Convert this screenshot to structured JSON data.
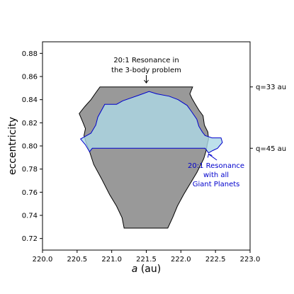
{
  "chart_data": {
    "type": "area",
    "xlabel": "a (au)",
    "xlabel_italic": "a",
    "xlabel_unit": " (au)",
    "ylabel": "eccentricity",
    "xlim": [
      220.0,
      223.0
    ],
    "ylim": [
      0.71,
      0.89
    ],
    "xticks": [
      "220.0",
      "220.5",
      "221.0",
      "221.5",
      "222.0",
      "222.5",
      "223.0"
    ],
    "yticks": [
      "0.72",
      "0.74",
      "0.76",
      "0.78",
      "0.80",
      "0.82",
      "0.84",
      "0.86",
      "0.88"
    ],
    "grid": false,
    "colors": {
      "three_body_fill": "#999999",
      "three_body_edge": "#000000",
      "giant_planets_fill": "#add8e6",
      "giant_planets_edge": "#0000cc",
      "giant_planets_label": "#0000cc"
    },
    "regions": [
      {
        "id": "three_body",
        "label": "20:1 Resonance in the 3-body problem",
        "label_lines": [
          "20:1 Resonance in",
          "the 3-body problem"
        ],
        "polygon": [
          [
            220.83,
            0.851
          ],
          [
            222.17,
            0.851
          ],
          [
            222.13,
            0.845
          ],
          [
            222.16,
            0.841
          ],
          [
            222.21,
            0.836
          ],
          [
            222.26,
            0.831
          ],
          [
            222.32,
            0.826
          ],
          [
            222.34,
            0.818
          ],
          [
            222.39,
            0.812
          ],
          [
            222.4,
            0.806
          ],
          [
            222.38,
            0.801
          ],
          [
            222.37,
            0.797
          ],
          [
            222.33,
            0.789
          ],
          [
            222.23,
            0.777
          ],
          [
            222.13,
            0.767
          ],
          [
            222.04,
            0.758
          ],
          [
            221.95,
            0.748
          ],
          [
            221.88,
            0.738
          ],
          [
            221.81,
            0.729
          ],
          [
            221.18,
            0.729
          ],
          [
            221.15,
            0.738
          ],
          [
            221.07,
            0.748
          ],
          [
            220.97,
            0.758
          ],
          [
            220.85,
            0.772
          ],
          [
            220.74,
            0.784
          ],
          [
            220.67,
            0.797
          ],
          [
            220.63,
            0.803
          ],
          [
            220.6,
            0.809
          ],
          [
            220.62,
            0.815
          ],
          [
            220.58,
            0.821
          ],
          [
            220.53,
            0.828
          ],
          [
            220.61,
            0.834
          ],
          [
            220.7,
            0.84
          ],
          [
            220.77,
            0.846
          ]
        ]
      },
      {
        "id": "giant_planets",
        "label": "20:1 Resonance with all Giant Planets",
        "label_lines": [
          "20:1 Resonance",
          "with all",
          "Giant Planets"
        ],
        "polygon": [
          [
            220.9,
            0.836
          ],
          [
            221.07,
            0.836
          ],
          [
            221.16,
            0.839
          ],
          [
            221.4,
            0.844
          ],
          [
            221.54,
            0.847
          ],
          [
            221.65,
            0.845
          ],
          [
            221.83,
            0.843
          ],
          [
            221.96,
            0.84
          ],
          [
            222.09,
            0.835
          ],
          [
            222.15,
            0.83
          ],
          [
            222.23,
            0.823
          ],
          [
            222.26,
            0.817
          ],
          [
            222.31,
            0.812
          ],
          [
            222.35,
            0.809
          ],
          [
            222.45,
            0.807
          ],
          [
            222.58,
            0.807
          ],
          [
            222.6,
            0.803
          ],
          [
            222.53,
            0.798
          ],
          [
            222.46,
            0.796
          ],
          [
            222.4,
            0.794
          ],
          [
            222.35,
            0.798
          ],
          [
            220.72,
            0.798
          ],
          [
            220.68,
            0.795
          ],
          [
            220.62,
            0.801
          ],
          [
            220.55,
            0.806
          ],
          [
            220.7,
            0.811
          ],
          [
            220.77,
            0.818
          ],
          [
            220.8,
            0.825
          ]
        ]
      }
    ],
    "reference_lines": [
      {
        "label": "q=33 au",
        "e": 0.851
      },
      {
        "label": "q=45 au",
        "e": 0.798
      }
    ]
  }
}
